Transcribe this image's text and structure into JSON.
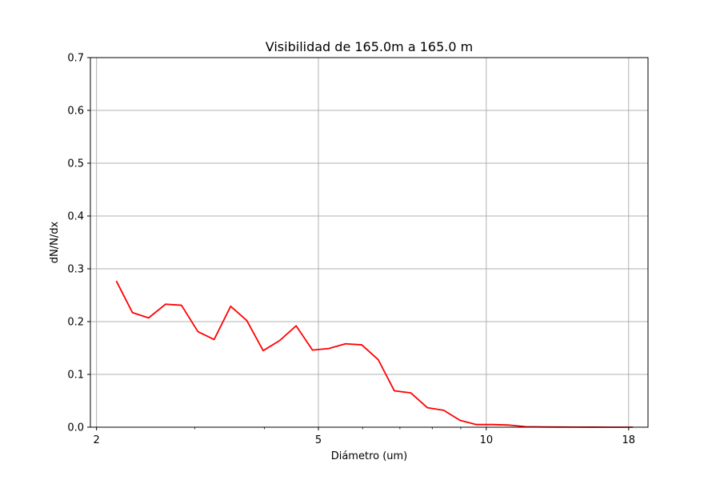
{
  "chart_data": {
    "type": "line",
    "title": "Visibilidad de 165.0m a 165.0 m",
    "xlabel": "Diámetro (um)",
    "ylabel": "dN/N/dx",
    "xscale": "log",
    "xlim": [
      1.95,
      19.5
    ],
    "ylim": [
      0,
      0.7
    ],
    "x_ticks": [
      2,
      5,
      10,
      18
    ],
    "x_tick_labels": [
      "2",
      "5",
      "10",
      "18"
    ],
    "y_ticks": [
      0.0,
      0.1,
      0.2,
      0.3,
      0.4,
      0.5,
      0.6,
      0.7
    ],
    "y_tick_labels": [
      "0.0",
      "0.1",
      "0.2",
      "0.3",
      "0.4",
      "0.5",
      "0.6",
      "0.7"
    ],
    "grid": true,
    "line_color": "#ff0000",
    "grid_color": "#b0b0b0",
    "series": [
      {
        "x": [
          2.17,
          2.32,
          2.48,
          2.66,
          2.84,
          3.04,
          3.25,
          3.48,
          3.72,
          3.98,
          4.26,
          4.56,
          4.88,
          5.22,
          5.59,
          5.98,
          6.4,
          6.84,
          7.32,
          7.84,
          8.39,
          8.97,
          9.6,
          10.28,
          11.0,
          11.77,
          12.59,
          13.47,
          14.42,
          15.43,
          16.51,
          17.67,
          18.32
        ],
        "y": [
          0.277,
          0.217,
          0.207,
          0.233,
          0.231,
          0.181,
          0.166,
          0.229,
          0.202,
          0.145,
          0.164,
          0.192,
          0.146,
          0.149,
          0.158,
          0.156,
          0.128,
          0.069,
          0.065,
          0.037,
          0.032,
          0.013,
          0.005,
          0.005,
          0.004,
          0.001,
          0.0005,
          0.0003,
          0.0002,
          0.0001,
          0.0,
          0.0,
          0.0
        ]
      }
    ]
  }
}
